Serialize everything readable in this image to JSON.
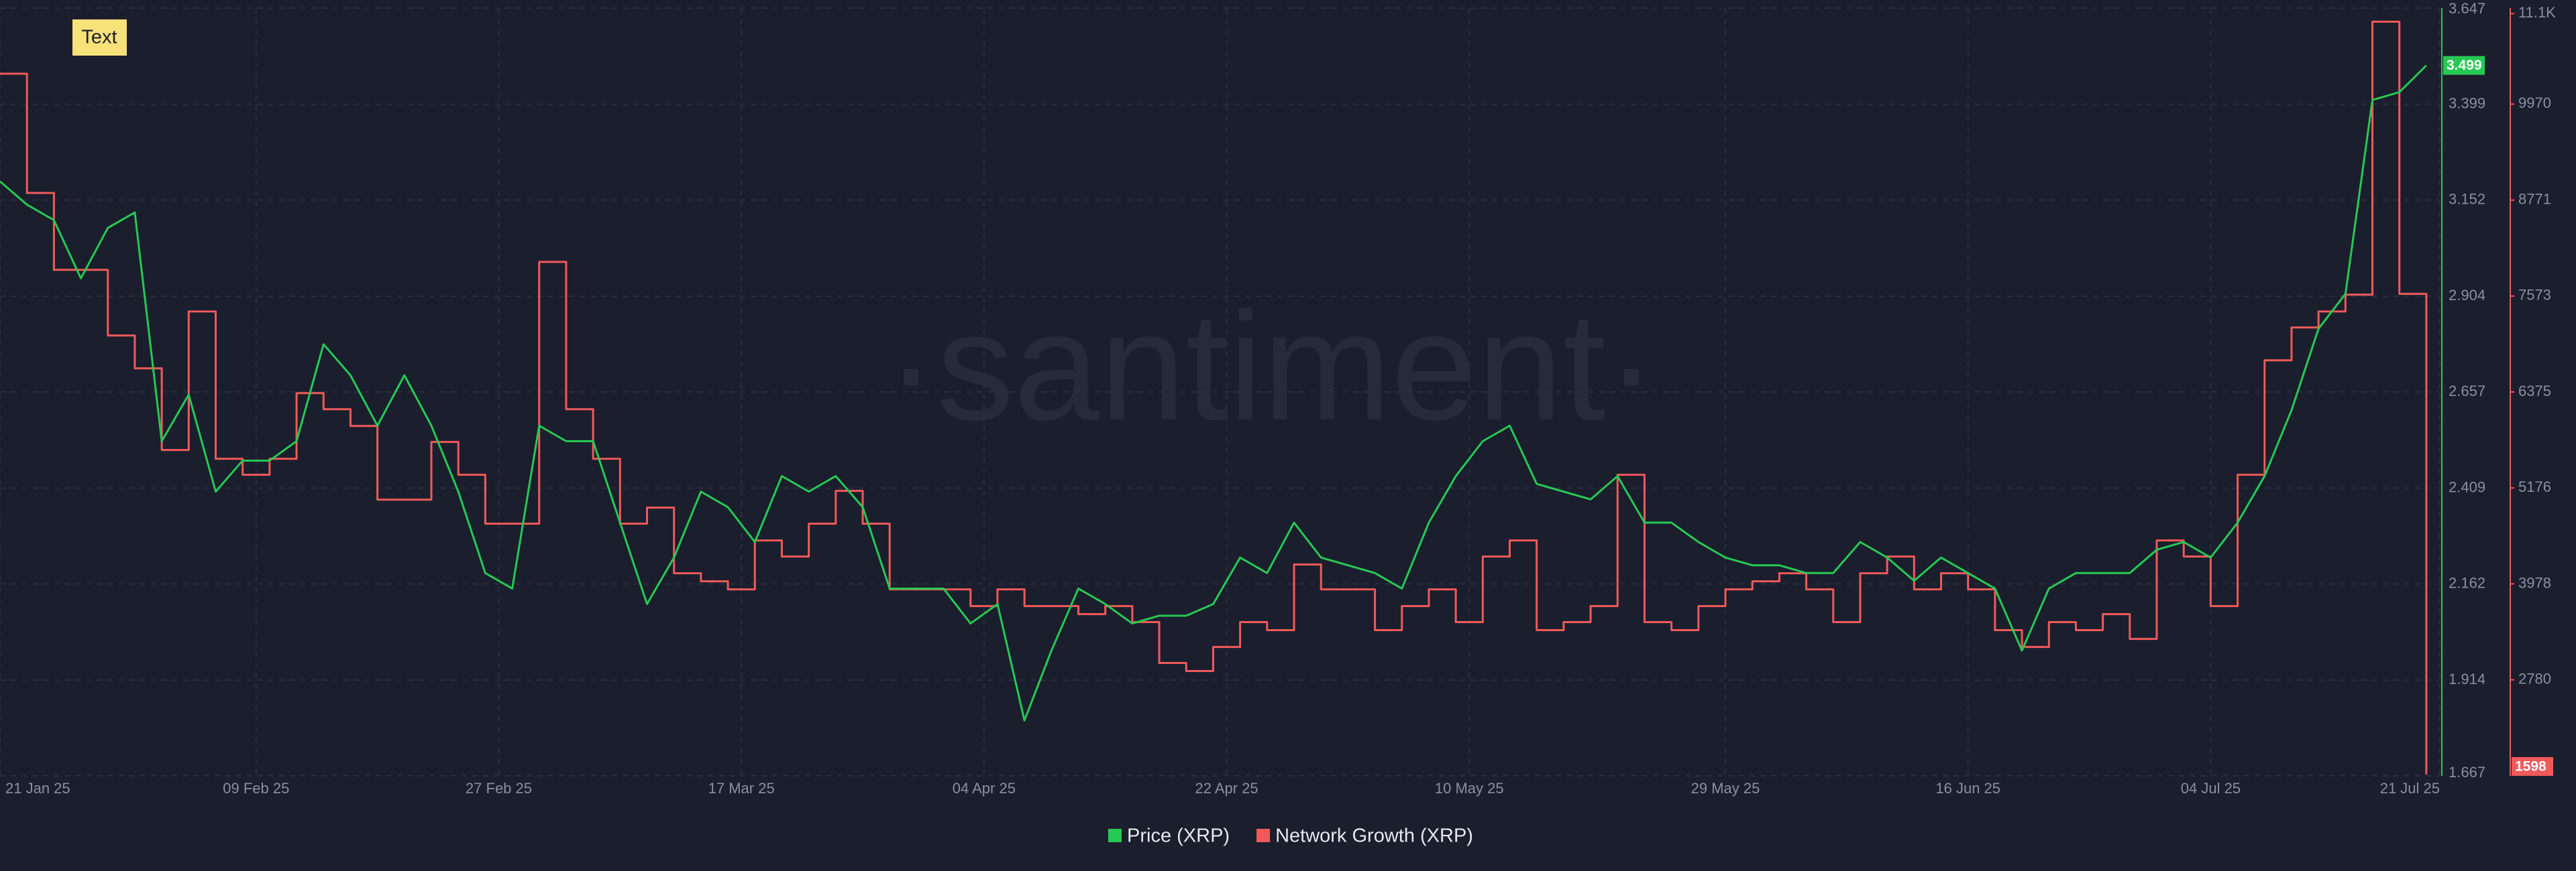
{
  "chart_data": {
    "type": "line",
    "annotation": "Text",
    "watermark": "·santiment·",
    "x": [
      "2025-01-21",
      "2025-01-23",
      "2025-01-25",
      "2025-01-27",
      "2025-01-29",
      "2025-01-31",
      "2025-02-02",
      "2025-02-04",
      "2025-02-06",
      "2025-02-08",
      "2025-02-10",
      "2025-02-12",
      "2025-02-14",
      "2025-02-16",
      "2025-02-18",
      "2025-02-20",
      "2025-02-22",
      "2025-02-24",
      "2025-02-26",
      "2025-02-28",
      "2025-03-02",
      "2025-03-04",
      "2025-03-06",
      "2025-03-08",
      "2025-03-10",
      "2025-03-12",
      "2025-03-14",
      "2025-03-16",
      "2025-03-18",
      "2025-03-20",
      "2025-03-22",
      "2025-03-24",
      "2025-03-26",
      "2025-03-28",
      "2025-03-30",
      "2025-04-01",
      "2025-04-03",
      "2025-04-05",
      "2025-04-07",
      "2025-04-09",
      "2025-04-11",
      "2025-04-13",
      "2025-04-15",
      "2025-04-17",
      "2025-04-19",
      "2025-04-21",
      "2025-04-23",
      "2025-04-25",
      "2025-04-27",
      "2025-04-29",
      "2025-05-01",
      "2025-05-03",
      "2025-05-05",
      "2025-05-07",
      "2025-05-09",
      "2025-05-11",
      "2025-05-13",
      "2025-05-15",
      "2025-05-17",
      "2025-05-19",
      "2025-05-21",
      "2025-05-23",
      "2025-05-25",
      "2025-05-27",
      "2025-05-29",
      "2025-05-31",
      "2025-06-02",
      "2025-06-04",
      "2025-06-06",
      "2025-06-08",
      "2025-06-10",
      "2025-06-12",
      "2025-06-14",
      "2025-06-16",
      "2025-06-18",
      "2025-06-20",
      "2025-06-22",
      "2025-06-24",
      "2025-06-26",
      "2025-06-28",
      "2025-06-30",
      "2025-07-02",
      "2025-07-04",
      "2025-07-06",
      "2025-07-08",
      "2025-07-10",
      "2025-07-12",
      "2025-07-14",
      "2025-07-16",
      "2025-07-18",
      "2025-07-20"
    ],
    "series": [
      {
        "name": "Price (XRP)",
        "color": "#26c953",
        "values": [
          3.2,
          3.14,
          3.1,
          2.95,
          3.08,
          3.12,
          2.53,
          2.65,
          2.4,
          2.48,
          2.48,
          2.53,
          2.78,
          2.7,
          2.57,
          2.7,
          2.57,
          2.4,
          2.19,
          2.15,
          2.57,
          2.53,
          2.53,
          2.32,
          2.11,
          2.23,
          2.4,
          2.36,
          2.27,
          2.44,
          2.4,
          2.44,
          2.36,
          2.15,
          2.15,
          2.15,
          2.06,
          2.11,
          1.81,
          1.99,
          2.15,
          2.11,
          2.06,
          2.08,
          2.08,
          2.11,
          2.23,
          2.19,
          2.32,
          2.23,
          2.21,
          2.19,
          2.15,
          2.32,
          2.44,
          2.53,
          2.57,
          2.42,
          2.4,
          2.38,
          2.44,
          2.32,
          2.32,
          2.27,
          2.23,
          2.21,
          2.21,
          2.19,
          2.19,
          2.27,
          2.23,
          2.17,
          2.23,
          2.19,
          2.15,
          1.99,
          2.15,
          2.19,
          2.19,
          2.19,
          2.25,
          2.27,
          2.23,
          2.32,
          2.44,
          2.61,
          2.82,
          2.91,
          3.41,
          3.43,
          3.499
        ]
      },
      {
        "name": "Network Growth (XRP)",
        "color": "#f05a5a",
        "axis": "y2",
        "step": true,
        "values": [
          10350,
          8860,
          7900,
          7900,
          7080,
          6670,
          5650,
          7380,
          5540,
          5340,
          5540,
          6360,
          6160,
          5950,
          5030,
          5030,
          5750,
          5340,
          4730,
          4730,
          8000,
          6160,
          5540,
          4730,
          4930,
          4110,
          4010,
          3910,
          4520,
          4320,
          4730,
          5140,
          4730,
          3910,
          3910,
          3910,
          3700,
          3910,
          3700,
          3700,
          3600,
          3700,
          3500,
          2990,
          2890,
          3190,
          3500,
          3400,
          4220,
          3910,
          3910,
          3400,
          3700,
          3910,
          3500,
          4320,
          4520,
          3400,
          3500,
          3700,
          5340,
          3500,
          3400,
          3700,
          3910,
          4010,
          4110,
          3910,
          3500,
          4110,
          4320,
          3910,
          4110,
          3910,
          3400,
          3190,
          3500,
          3400,
          3600,
          3290,
          4520,
          4320,
          3700,
          5340,
          6770,
          7180,
          7380,
          7590,
          11000,
          7600,
          1598
        ]
      }
    ],
    "xlim": [
      "2025-01-21",
      "2025-07-21"
    ],
    "xticks": [
      {
        "value": "2025-01-21",
        "label": "21 Jan 25"
      },
      {
        "value": "2025-02-09",
        "label": "09 Feb 25"
      },
      {
        "value": "2025-02-27",
        "label": "27 Feb 25"
      },
      {
        "value": "2025-03-17",
        "label": "17 Mar 25"
      },
      {
        "value": "2025-04-04",
        "label": "04 Apr 25"
      },
      {
        "value": "2025-04-22",
        "label": "22 Apr 25"
      },
      {
        "value": "2025-05-10",
        "label": "10 May 25"
      },
      {
        "value": "2025-05-29",
        "label": "29 May 25"
      },
      {
        "value": "2025-06-16",
        "label": "16 Jun 25"
      },
      {
        "value": "2025-07-04",
        "label": "04 Jul 25"
      },
      {
        "value": "2025-07-21",
        "label": "21 Jul 25"
      }
    ],
    "ylim": [
      1.667,
      3.647
    ],
    "yticks": [
      3.647,
      3.399,
      3.152,
      2.904,
      2.657,
      2.409,
      2.162,
      1.914,
      1.667
    ],
    "y2lim": [
      1580,
      11170
    ],
    "y2ticks": [
      {
        "value": 11100,
        "label": "11.1K"
      },
      9970,
      8771,
      7573,
      6375,
      5176,
      3978,
      2780
    ],
    "grid": true
  }
}
